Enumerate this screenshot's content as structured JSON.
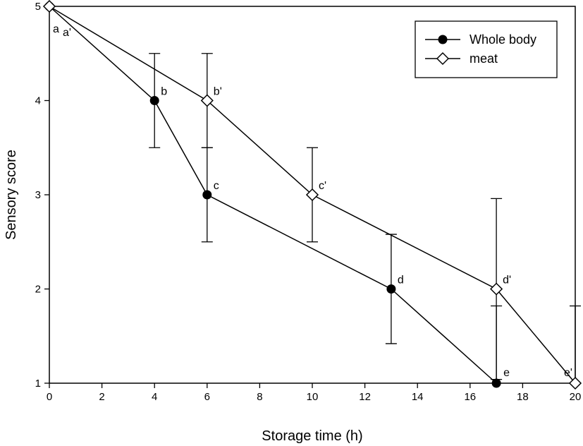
{
  "chart_data": {
    "type": "line",
    "title": "",
    "xlabel": "Storage time (h)",
    "ylabel": "Sensory score",
    "xlim": [
      0,
      20
    ],
    "ylim": [
      1,
      5
    ],
    "xticks": [
      0,
      2,
      4,
      6,
      8,
      10,
      12,
      14,
      16,
      18,
      20
    ],
    "yticks": [
      1,
      2,
      3,
      4,
      5
    ],
    "grid": false,
    "legend_position": "top-right",
    "series": [
      {
        "name": "Whole body",
        "marker": "filled-circle",
        "color": "#000000",
        "points": [
          {
            "x": 0,
            "y": 5,
            "err": 0,
            "label": "a"
          },
          {
            "x": 4,
            "y": 4,
            "err": 0.5,
            "label": "b"
          },
          {
            "x": 6,
            "y": 3,
            "err": 0.5,
            "label": "c"
          },
          {
            "x": 13,
            "y": 2,
            "err": 0.58,
            "label": "d"
          },
          {
            "x": 17,
            "y": 1,
            "err": 0.82,
            "label": "e"
          }
        ]
      },
      {
        "name": "meat",
        "marker": "open-diamond",
        "color": "#000000",
        "points": [
          {
            "x": 0,
            "y": 5,
            "err": 0,
            "label": "a'"
          },
          {
            "x": 6,
            "y": 4,
            "err": 0.5,
            "label": "b'"
          },
          {
            "x": 10,
            "y": 3,
            "err": 0.5,
            "label": "c'"
          },
          {
            "x": 17,
            "y": 2,
            "err": 0.96,
            "label": "d'"
          },
          {
            "x": 20,
            "y": 1,
            "err": 0.82,
            "label": "e'"
          }
        ]
      }
    ]
  }
}
